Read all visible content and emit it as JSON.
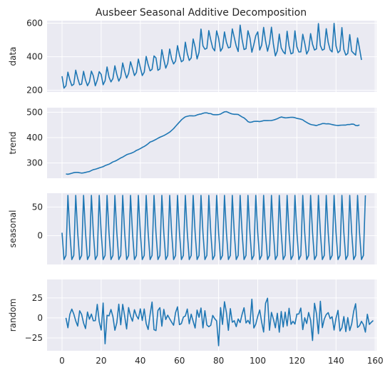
{
  "chart_data": {
    "type": "line",
    "title": "Ausbeer Seasonal Additive Decomposition",
    "xlim": [
      -7.65,
      160.65
    ],
    "x_ticks": [
      0,
      20,
      40,
      60,
      80,
      100,
      120,
      140,
      160
    ],
    "x_tick_labels": [
      "0",
      "20",
      "40",
      "60",
      "80",
      "100",
      "120",
      "140",
      "160"
    ],
    "grid": true,
    "line_color": "#1f77b4",
    "background_color": "#eaeaf2",
    "panels": [
      {
        "name": "data",
        "ylabel": "data",
        "ylim": [
          190,
          615
        ],
        "y_ticks": [
          200,
          400,
          600
        ],
        "y_tick_labels": [
          "200",
          "400",
          "600"
        ],
        "x_start": 0,
        "values": [
          284,
          213,
          227,
          308,
          262,
          228,
          236,
          320,
          272,
          233,
          237,
          313,
          261,
          227,
          250,
          314,
          286,
          227,
          260,
          311,
          295,
          233,
          257,
          339,
          279,
          250,
          270,
          346,
          294,
          255,
          278,
          363,
          313,
          273,
          300,
          370,
          331,
          288,
          306,
          386,
          335,
          288,
          308,
          402,
          353,
          316,
          325,
          405,
          393,
          319,
          327,
          442,
          383,
          332,
          361,
          446,
          387,
          357,
          374,
          466,
          410,
          370,
          379,
          487,
          419,
          378,
          393,
          506,
          458,
          387,
          427,
          565,
          465,
          445,
          450,
          556,
          500,
          452,
          435,
          554,
          510,
          433,
          453,
          548,
          486,
          453,
          457,
          566,
          515,
          464,
          431,
          588,
          503,
          443,
          448,
          555,
          513,
          427,
          473,
          526,
          548,
          440,
          469,
          575,
          493,
          433,
          480,
          576,
          475,
          405,
          435,
          535,
          453,
          430,
          417,
          552,
          464,
          417,
          423,
          554,
          459,
          428,
          429,
          534,
          481,
          416,
          440,
          538,
          474,
          440,
          447,
          598,
          467,
          439,
          446,
          567,
          485,
          441,
          429,
          599,
          464,
          424,
          436,
          574,
          443,
          410,
          420,
          532,
          433,
          421,
          410,
          512,
          449,
          381
        ]
      },
      {
        "name": "trend",
        "ylabel": "trend",
        "ylim": [
          240,
          518
        ],
        "y_ticks": [
          300,
          400,
          500
        ],
        "y_tick_labels": [
          "300",
          "400",
          "500"
        ],
        "x_start": 2,
        "values": [
          256.9,
          255.6,
          257.4,
          259.6,
          261.9,
          262.9,
          263.0,
          261.5,
          260.3,
          261.3,
          263.0,
          265.0,
          266.5,
          270.3,
          273.9,
          275.4,
          277.8,
          280.8,
          283.1,
          285.6,
          289.8,
          292.5,
          295.3,
          299.6,
          304.3,
          307.1,
          310.6,
          315.4,
          320.0,
          323.3,
          327.9,
          332.6,
          335.5,
          337.6,
          340.6,
          344.4,
          349.6,
          352.8,
          356.8,
          361.4,
          365.1,
          370.1,
          375.8,
          382.5,
          385.4,
          388.9,
          393.0,
          397.4,
          401.4,
          404.6,
          408.0,
          412.1,
          416.8,
          421.5,
          428.3,
          435.3,
          444.3,
          452.8,
          461.3,
          469.8,
          476.4,
          481.9,
          483.9,
          485.8,
          486.0,
          485.4,
          486.1,
          489.4,
          491.8,
          492.8,
          495.8,
          497.6,
          497.5,
          494.9,
          494.5,
          490.9,
          490.1,
          490.2,
          490.9,
          492.8,
          497.4,
          501.5,
          502.4,
          499.0,
          495.3,
          493.1,
          491.8,
          491.9,
          491.2,
          486.3,
          481.4,
          477.6,
          471.1,
          463.0,
          460.2,
          461.3,
          463.8,
          464.3,
          464.1,
          463.2,
          464.8,
          466.8,
          466.9,
          466.8,
          467.1,
          467.4,
          469.2,
          471.5,
          474.4,
          478.4,
          481.3,
          479.5,
          477.9,
          478.1,
          479.3,
          480.1,
          479.8,
          478.5,
          475.7,
          474.4,
          472.6,
          469.9,
          464.5,
          459.9,
          455.5,
          452.1,
          450.3,
          449.0,
          447.3,
          450.4,
          452.3,
          455.2,
          455.4,
          454.1,
          454.7,
          453.4,
          451.4,
          449.8,
          448.5,
          447.7,
          448.6,
          449.2,
          449.5,
          449.5,
          451.6,
          451.6,
          453.3,
          452.9,
          448.0,
          447.0,
          449.8
        ]
      },
      {
        "name": "seasonal",
        "ylabel": "seasonal",
        "ylim": [
          -50,
          74
        ],
        "y_ticks": [
          0,
          50
        ],
        "y_tick_labels": [
          "0",
          "50"
        ],
        "x_start": 0,
        "pattern": [
          5.24,
          -41.35,
          -34.16,
          70.27
        ],
        "cycles": 39
      },
      {
        "name": "random",
        "ylabel": "random",
        "ylim": [
          -41,
          48
        ],
        "y_ticks": [
          -25,
          0,
          25
        ],
        "y_tick_labels": [
          "−25",
          "0",
          "25"
        ],
        "x_start": 2,
        "values": [
          0.1,
          -12.3,
          4.5,
          11.0,
          4.9,
          -3.7,
          -10.2,
          8.9,
          4.4,
          -6.3,
          -13.3,
          7.3,
          -1.6,
          4.8,
          -3.6,
          -3.4,
          16.9,
          -4.6,
          -15.1,
          18.6,
          -32.3,
          3.3,
          2.6,
          10.5,
          1.6,
          -15.4,
          -5.9,
          17.1,
          -8.6,
          16.9,
          2.4,
          -13.8,
          12.9,
          2.3,
          -4.1,
          10.2,
          2.9,
          -1.4,
          11.3,
          -3.2,
          11.1,
          -7.1,
          -14.4,
          4.4,
          19.8,
          -14.7,
          -15.8,
          9.3,
          12.8,
          -10.3,
          10.7,
          -2.0,
          3.4,
          -1.1,
          -5.3,
          -9.1,
          6.5,
          13.8,
          -8.4,
          -7.0,
          1.0,
          2.4,
          11.1,
          -7.3,
          4.7,
          -4.3,
          -12.6,
          9.8,
          0.8,
          12.4,
          -12.4,
          9.0,
          -8.9,
          -11.0,
          -9.2,
          3.1,
          -0.9,
          -3.8,
          -34.7,
          12.9,
          -8.1,
          20.2,
          6.6,
          -15.5,
          11.6,
          -5.4,
          -3.5,
          -10.9,
          -1.3,
          -5.8,
          4.5,
          12.7,
          -6.3,
          -3.0,
          -7.4,
          23.4,
          -12.6,
          -7.7,
          2.0,
          9.9,
          -5.3,
          -17.6,
          18.3,
          24.6,
          -15.4,
          6.9,
          -1.5,
          -12.3,
          5.8,
          -17.8,
          8.0,
          -11.3,
          7.2,
          -9.9,
          12.0,
          -8.0,
          -4.2,
          -7.7,
          4.8,
          4.9,
          12.3,
          -14.6,
          0.2,
          -7.0,
          6.8,
          -2.7,
          -28.2,
          18.3,
          5.5,
          -19.7,
          20.8,
          -12.1,
          -1.4,
          4.2,
          6.6,
          -0.9,
          1.5,
          -15.1,
          -0.2,
          9.4,
          -16.4,
          -12.3,
          1.7,
          -17.1,
          0.4,
          -15.7,
          -7.5,
          8.1,
          17.7,
          -11.9,
          -9.7,
          -4.3,
          -8.4,
          -17.7,
          4.6,
          -8.1,
          -5.5,
          -3.2
        ]
      }
    ]
  }
}
